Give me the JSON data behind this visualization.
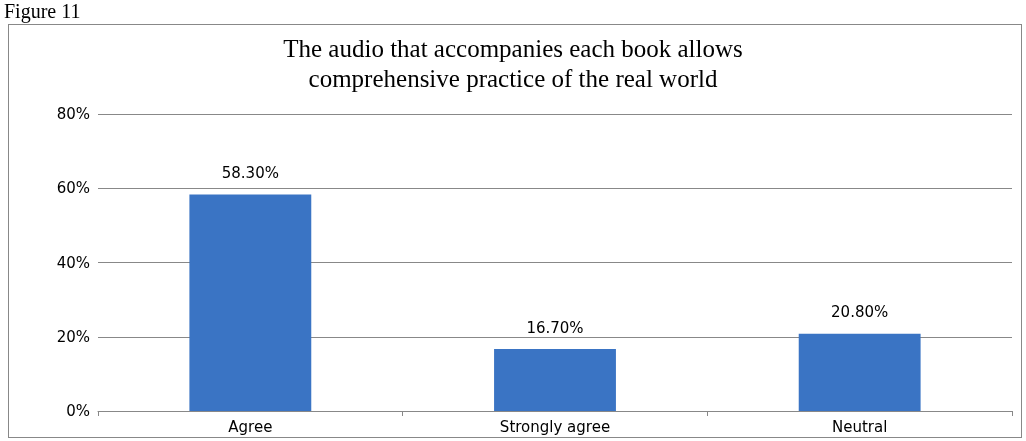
{
  "chart_data": {
    "type": "bar",
    "title": "The audio that accompanies each book allows\ncomprehensive practice of the real world",
    "annotations": [
      "Figure 11"
    ],
    "categories": [
      "Agree",
      "Strongly agree",
      "Neutral"
    ],
    "values": [
      58.3,
      16.7,
      20.8
    ],
    "value_labels": [
      "58.30%",
      "16.70%",
      "20.80%"
    ],
    "color": "#3a74c4",
    "ylim": [
      0,
      80
    ],
    "yticks": [
      {
        "value": 0,
        "label": "0%"
      },
      {
        "value": 20,
        "label": "20%"
      },
      {
        "value": 40,
        "label": "40%"
      },
      {
        "value": 60,
        "label": "60%"
      },
      {
        "value": 80,
        "label": "80%"
      }
    ],
    "grid": "y"
  }
}
